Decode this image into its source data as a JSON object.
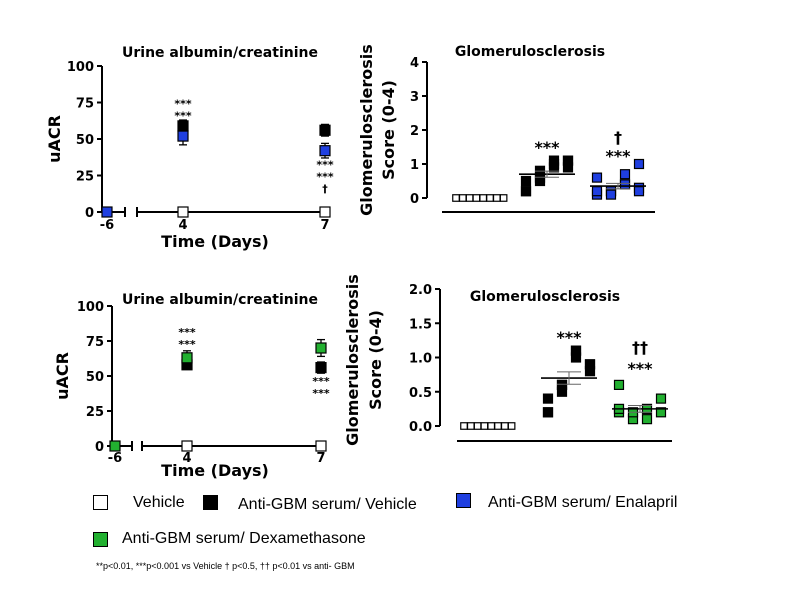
{
  "colors": {
    "vehicle": "#ffffff",
    "anti_gbm": "#000000",
    "enalapril": "#1f3fe0",
    "dexamethasone": "#22b030",
    "enalapril_text": "#2a4de8",
    "dex_text": "#2ec43a"
  },
  "chart_data": [
    {
      "id": "A",
      "type": "line",
      "title": "Urine albumin/creatinine",
      "ylabel": "uACR",
      "xlabel": "Time (Days)",
      "ylim": [
        0,
        100
      ],
      "yticks": [
        "0",
        "25",
        "50",
        "75",
        "100"
      ],
      "x": [
        "-6",
        "4",
        "7"
      ],
      "series": [
        {
          "name": "Vehicle",
          "color": "vehicle",
          "values": [
            null,
            0,
            0
          ],
          "err": [
            0,
            0,
            0
          ]
        },
        {
          "name": "Anti-GBM serum/ Vehicle",
          "color": "anti_gbm",
          "values": [
            null,
            59,
            56
          ],
          "err": [
            0,
            4,
            4
          ]
        },
        {
          "name": "Anti-GBM serum/ Enalapril",
          "color": "enalapril",
          "values": [
            0,
            52,
            42
          ],
          "err": [
            0,
            6,
            5
          ]
        }
      ],
      "annotations": [
        {
          "text": "***",
          "color": "anti_gbm",
          "x": "4",
          "y": 72
        },
        {
          "text": "***",
          "color": "enalapril_text",
          "x": "4",
          "y": 66
        },
        {
          "text": "***",
          "color": "anti_gbm",
          "x": "7",
          "y": 29
        },
        {
          "text": "***",
          "color": "enalapril_text",
          "x": "7",
          "y": 23
        },
        {
          "text": "†",
          "color": "enalapril_text",
          "x": "7",
          "y": 16
        }
      ]
    },
    {
      "id": "B",
      "type": "scatter",
      "title": "Glomerulosclerosis",
      "ylabel": [
        "Glomerulosclerosis",
        "Score (0-4)"
      ],
      "ylim": [
        0,
        4
      ],
      "yticks": [
        "0",
        "1",
        "2",
        "3",
        "4"
      ],
      "groups": [
        {
          "name": "Vehicle",
          "color": "vehicle",
          "values": [
            0,
            0,
            0,
            0,
            0,
            0,
            0,
            0
          ],
          "mean": 0,
          "sem": 0
        },
        {
          "name": "Anti-GBM serum/ Vehicle",
          "color": "anti_gbm",
          "values": [
            0.2,
            0.5,
            0.9,
            1.1,
            0.2,
            0.6,
            1.0,
            1.1,
            0.5,
            0.8,
            1.1,
            0.9
          ],
          "mean": 0.7,
          "sem": 0.09
        },
        {
          "name": "Anti-GBM serum/ Enalapril",
          "color": "enalapril",
          "values": [
            0.1,
            0.2,
            0.4,
            1.0,
            0.6,
            0.2,
            0.7,
            0.3,
            0.2,
            0.1,
            0.4,
            0.2
          ],
          "mean": 0.35,
          "sem": 0.08
        }
      ],
      "annotations": [
        {
          "text": "***",
          "color": "anti_gbm",
          "group": 1,
          "y": 1.5
        },
        {
          "text": "***",
          "color": "enalapril_text",
          "group": 2,
          "y": 1.25
        },
        {
          "text": "†",
          "color": "enalapril_text",
          "group": 2,
          "y": 1.8
        }
      ]
    },
    {
      "id": "C",
      "type": "line",
      "title": "Urine albumin/creatinine",
      "ylabel": "uACR",
      "xlabel": "Time (Days)",
      "ylim": [
        0,
        100
      ],
      "yticks": [
        "0",
        "25",
        "50",
        "75",
        "100"
      ],
      "x": [
        "-6",
        "4",
        "7"
      ],
      "series": [
        {
          "name": "Vehicle",
          "color": "vehicle",
          "values": [
            null,
            0,
            0
          ],
          "err": [
            0,
            0,
            0
          ]
        },
        {
          "name": "Anti-GBM serum/ Vehicle",
          "color": "anti_gbm",
          "values": [
            null,
            58,
            56
          ],
          "err": [
            0,
            3,
            4
          ]
        },
        {
          "name": "Anti-GBM serum/ Dexamethasone",
          "color": "dexamethasone",
          "values": [
            0,
            63,
            70
          ],
          "err": [
            0,
            5,
            6
          ]
        }
      ],
      "annotations": [
        {
          "text": "***",
          "color": "dex_text",
          "x": "4",
          "y": 79
        },
        {
          "text": "***",
          "color": "anti_gbm",
          "x": "4",
          "y": 73
        },
        {
          "text": "***",
          "color": "anti_gbm",
          "x": "7",
          "y": 43
        },
        {
          "text": "***",
          "color": "dex_text",
          "x": "7",
          "y": 38
        }
      ]
    },
    {
      "id": "D",
      "type": "scatter",
      "title": "Glomerulosclerosis",
      "ylabel": [
        "Glomerulosclerosis",
        "Score (0-4)"
      ],
      "ylim": [
        0,
        2
      ],
      "yticks": [
        "0.0",
        "0.5",
        "1.0",
        "1.5",
        "2.0"
      ],
      "groups": [
        {
          "name": "Vehicle",
          "color": "vehicle",
          "values": [
            0,
            0,
            0,
            0,
            0,
            0,
            0,
            0
          ],
          "mean": 0,
          "sem": 0
        },
        {
          "name": "Anti-GBM serum/ Vehicle",
          "color": "anti_gbm",
          "values": [
            0.2,
            0.6,
            1.1,
            0.9,
            0.4,
            0.5,
            1.0,
            0.8,
            0.2,
            0.6,
            1.1,
            0.9
          ],
          "mean": 0.7,
          "sem": 0.09
        },
        {
          "name": "Anti-GBM serum/ Dexamethasone",
          "color": "dexamethasone",
          "values": [
            0.2,
            0.1,
            0.25,
            0.4,
            0.6,
            0.2,
            0.1,
            0.2,
            0.25
          ],
          "mean": 0.25,
          "sem": 0.05
        }
      ],
      "annotations": [
        {
          "text": "***",
          "color": "anti_gbm",
          "group": 1,
          "y": 1.3
        },
        {
          "text": "***",
          "color": "dex_text",
          "group": 2,
          "y": 0.85
        },
        {
          "text": "††",
          "color": "dex_text",
          "group": 2,
          "y": 1.15
        }
      ]
    }
  ],
  "legend": {
    "vehicle": "Vehicle",
    "anti_gbm": "Anti-GBM serum/ Vehicle",
    "enalapril": "Anti-GBM serum/ Enalapril",
    "dexamethasone": "Anti-GBM serum/ Dexamethasone"
  },
  "footnote": "**p<0.01, ***p<0.001 vs Vehicle † p<0.5, †† p<0.01 vs anti- GBM"
}
